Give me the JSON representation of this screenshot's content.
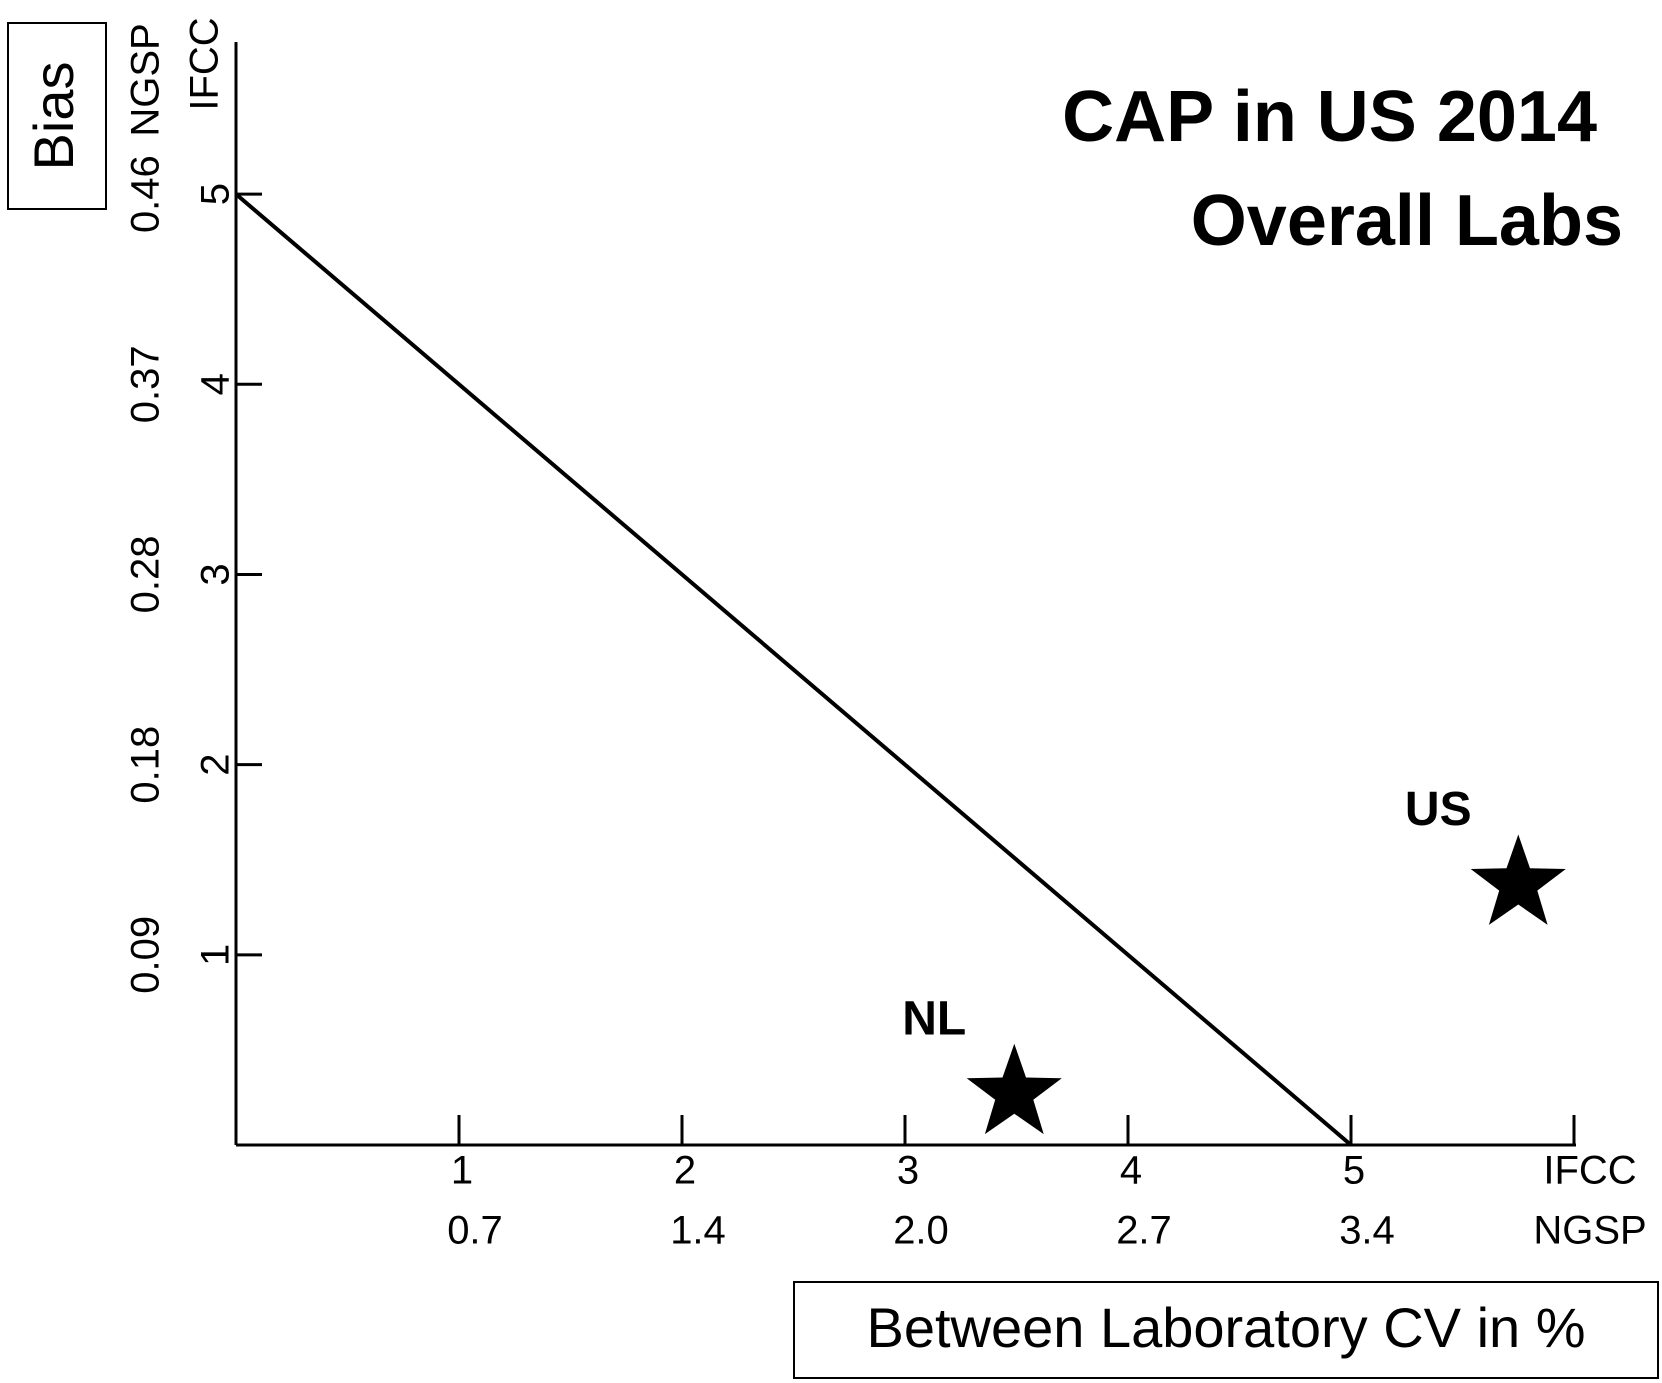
{
  "chart_data": {
    "type": "scatter",
    "title": [
      "CAP in US 2014",
      "Overall Labs"
    ],
    "ylabel": "Bias",
    "xlabel": "Between Laboratory CV in %",
    "y_unit_labels": [
      "IFCC",
      "NGSP"
    ],
    "xlim": [
      0,
      6
    ],
    "ylim": [
      0,
      5.8
    ],
    "xticks": [
      1,
      2,
      3,
      4,
      5,
      {
        "value": 6,
        "label": "IFCC"
      }
    ],
    "x2ticks": [
      {
        "value": 1,
        "label": "0.7"
      },
      {
        "value": 2,
        "label": "1.4"
      },
      {
        "value": 3,
        "label": "2.0"
      },
      {
        "value": 4,
        "label": "2.7"
      },
      {
        "value": 5,
        "label": "3.4"
      },
      {
        "value": 6,
        "label": "NGSP"
      }
    ],
    "yticks": [
      1,
      2,
      3,
      4,
      5
    ],
    "y2ticks": [
      {
        "value": 1,
        "label": "0.09"
      },
      {
        "value": 2,
        "label": "0.18"
      },
      {
        "value": 3,
        "label": "0.28"
      },
      {
        "value": 4,
        "label": "0.37"
      },
      {
        "value": 5,
        "label": "0.46"
      }
    ],
    "line": {
      "x": [
        0,
        5
      ],
      "values": [
        5,
        0
      ],
      "color": "#000000"
    },
    "points": {
      "labels": [
        "NL",
        "US"
      ],
      "x": [
        3.49,
        5.75
      ],
      "values": [
        0.27,
        1.37
      ],
      "color": "#000000"
    }
  }
}
